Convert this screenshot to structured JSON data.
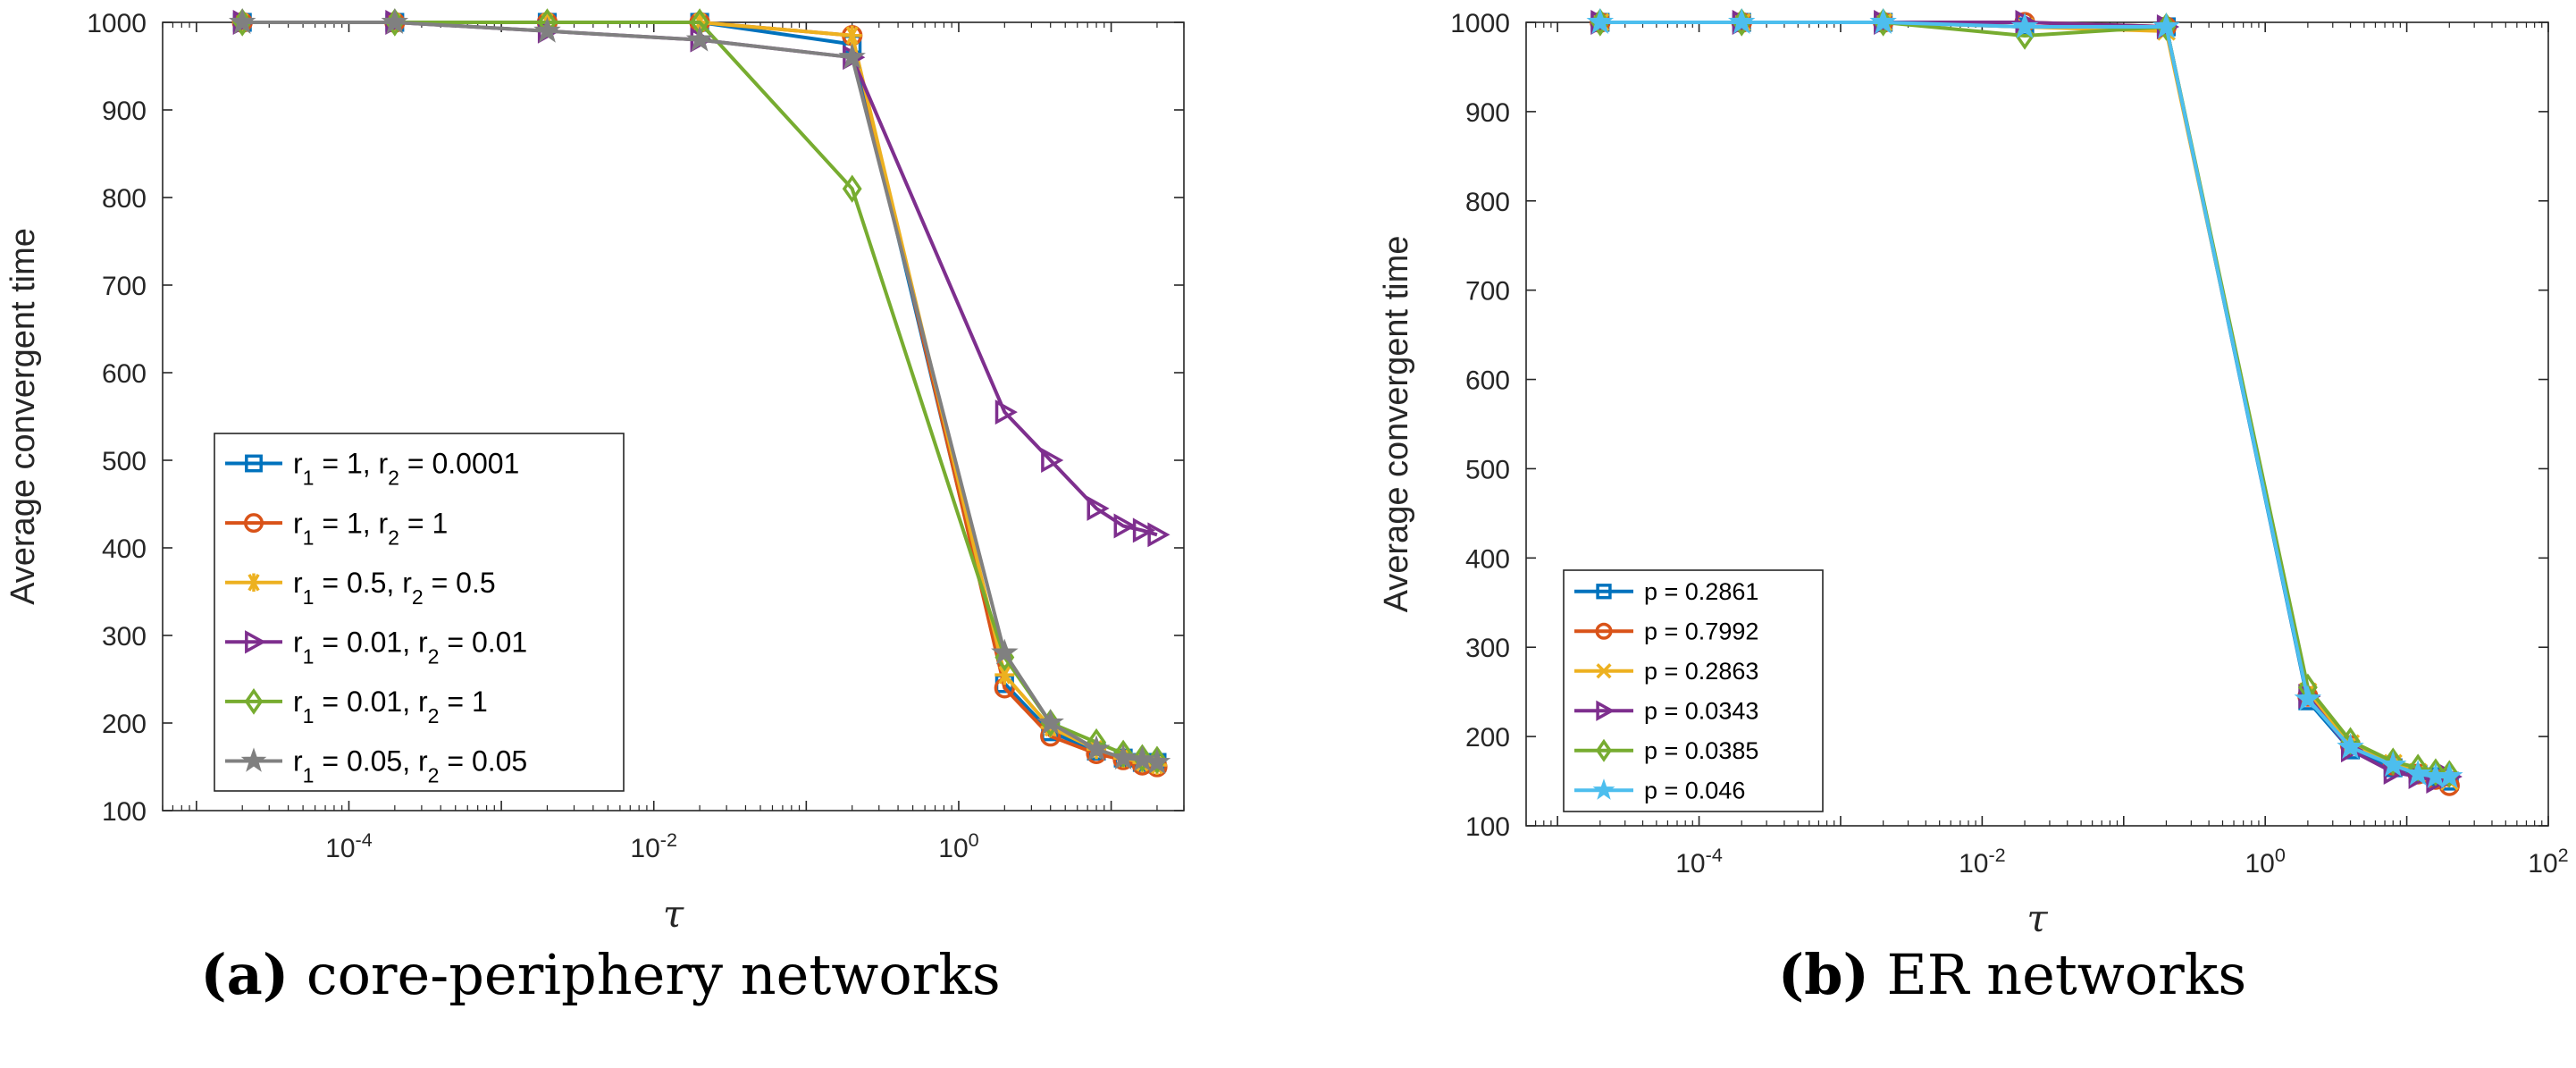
{
  "chart_data": [
    {
      "type": "line",
      "caption_letter": "(a)",
      "caption_text": " core-periphery networks",
      "xlabel": "τ",
      "ylabel": "Average convergent time",
      "xscale": "log",
      "xlim": [
        6e-06,
        30
      ],
      "ylim": [
        100,
        1000
      ],
      "yticks": [
        100,
        200,
        300,
        400,
        500,
        600,
        700,
        800,
        900,
        1000
      ],
      "xticks": [
        {
          "value": 0.0001,
          "label": "10⁻⁴"
        },
        {
          "value": 0.01,
          "label": "10⁻²"
        },
        {
          "value": 1,
          "label": "10⁰"
        }
      ],
      "legend_position": "lower-left",
      "series": [
        {
          "name": "r₁ = 1, r₂ = 0.0001",
          "marker": "square",
          "color": "#0072BD",
          "x": [
            2e-05,
            0.0002,
            0.002,
            0.02,
            0.2,
            2,
            4,
            8,
            12,
            16,
            20
          ],
          "y": [
            1000,
            1000,
            1000,
            1000,
            975,
            245,
            190,
            168,
            160,
            155,
            155
          ]
        },
        {
          "name": "r₁ = 1, r₂ = 1",
          "marker": "circle",
          "color": "#D95319",
          "x": [
            2e-05,
            0.0002,
            0.002,
            0.02,
            0.2,
            2,
            4,
            8,
            12,
            16,
            20
          ],
          "y": [
            1000,
            1000,
            1000,
            1000,
            985,
            240,
            185,
            165,
            158,
            152,
            150
          ]
        },
        {
          "name": "r₁ = 0.5, r₂ = 0.5",
          "marker": "asterisk",
          "color": "#EDB120",
          "x": [
            2e-05,
            0.0002,
            0.002,
            0.02,
            0.2,
            2,
            4,
            8,
            12,
            16,
            20
          ],
          "y": [
            1000,
            1000,
            1000,
            1000,
            985,
            255,
            195,
            170,
            160,
            155,
            152
          ]
        },
        {
          "name": "r₁ = 0.01, r₂ = 0.01",
          "marker": "triangle-right",
          "color": "#7E2F8E",
          "x": [
            2e-05,
            0.0002,
            0.002,
            0.02,
            0.2,
            2,
            4,
            8,
            12,
            16,
            20
          ],
          "y": [
            1000,
            1000,
            990,
            980,
            960,
            555,
            500,
            445,
            425,
            420,
            415
          ]
        },
        {
          "name": "r₁ = 0.01, r₂ = 1",
          "marker": "diamond",
          "color": "#77AC30",
          "x": [
            2e-05,
            0.0002,
            0.002,
            0.02,
            0.2,
            2,
            4,
            8,
            12,
            16,
            20
          ],
          "y": [
            1000,
            1000,
            1000,
            1000,
            810,
            275,
            200,
            178,
            165,
            160,
            158
          ]
        },
        {
          "name": "r₁ = 0.05, r₂ = 0.05",
          "marker": "pentagram",
          "color": "#808080",
          "x": [
            2e-05,
            0.0002,
            0.002,
            0.02,
            0.2,
            2,
            4,
            8,
            12,
            16,
            20
          ],
          "y": [
            1000,
            1000,
            990,
            980,
            960,
            280,
            200,
            170,
            160,
            158,
            155
          ]
        }
      ]
    },
    {
      "type": "line",
      "caption_letter": "(b)",
      "caption_text": " ER networks",
      "xlabel": "τ",
      "ylabel": "Average convergent time",
      "xscale": "log",
      "xlim": [
        6e-06,
        100
      ],
      "ylim": [
        100,
        1000
      ],
      "yticks": [
        100,
        200,
        300,
        400,
        500,
        600,
        700,
        800,
        900,
        1000
      ],
      "xticks": [
        {
          "value": 0.0001,
          "label": "10⁻⁴"
        },
        {
          "value": 0.01,
          "label": "10⁻²"
        },
        {
          "value": 1,
          "label": "10⁰"
        },
        {
          "value": 100,
          "label": "10²"
        }
      ],
      "legend_position": "lower-left",
      "series": [
        {
          "name": "p = 0.2861",
          "marker": "square",
          "color": "#0072BD",
          "x": [
            2e-05,
            0.0002,
            0.002,
            0.02,
            0.2,
            2,
            4,
            8,
            12,
            16,
            20
          ],
          "y": [
            1000,
            1000,
            1000,
            995,
            995,
            240,
            185,
            165,
            158,
            155,
            150
          ]
        },
        {
          "name": "p = 0.7992",
          "marker": "circle",
          "color": "#D95319",
          "x": [
            2e-05,
            0.0002,
            0.002,
            0.02,
            0.2,
            2,
            4,
            8,
            12,
            16,
            20
          ],
          "y": [
            1000,
            1000,
            1000,
            1000,
            995,
            245,
            190,
            168,
            158,
            152,
            145
          ]
        },
        {
          "name": "p = 0.2863",
          "marker": "x",
          "color": "#EDB120",
          "x": [
            2e-05,
            0.0002,
            0.002,
            0.02,
            0.2,
            2,
            4,
            8,
            12,
            16,
            20
          ],
          "y": [
            1000,
            1000,
            1000,
            995,
            990,
            250,
            192,
            170,
            160,
            155,
            150
          ]
        },
        {
          "name": "p = 0.0343",
          "marker": "triangle-right",
          "color": "#7E2F8E",
          "x": [
            2e-05,
            0.0002,
            0.002,
            0.02,
            0.2,
            2,
            4,
            8,
            12,
            16,
            20
          ],
          "y": [
            1000,
            1000,
            1000,
            1000,
            995,
            245,
            185,
            160,
            155,
            150,
            155
          ]
        },
        {
          "name": "p = 0.0385",
          "marker": "diamond",
          "color": "#77AC30",
          "x": [
            2e-05,
            0.0002,
            0.002,
            0.02,
            0.2,
            2,
            4,
            8,
            12,
            16,
            20
          ],
          "y": [
            1000,
            1000,
            1000,
            985,
            995,
            255,
            195,
            172,
            165,
            160,
            158
          ]
        },
        {
          "name": "p = 0.046",
          "marker": "pentagram",
          "color": "#4DBEEE",
          "x": [
            2e-05,
            0.0002,
            0.002,
            0.02,
            0.2,
            2,
            4,
            8,
            12,
            16,
            20
          ],
          "y": [
            1000,
            1000,
            1000,
            995,
            995,
            242,
            188,
            168,
            158,
            155,
            155
          ]
        }
      ]
    }
  ]
}
